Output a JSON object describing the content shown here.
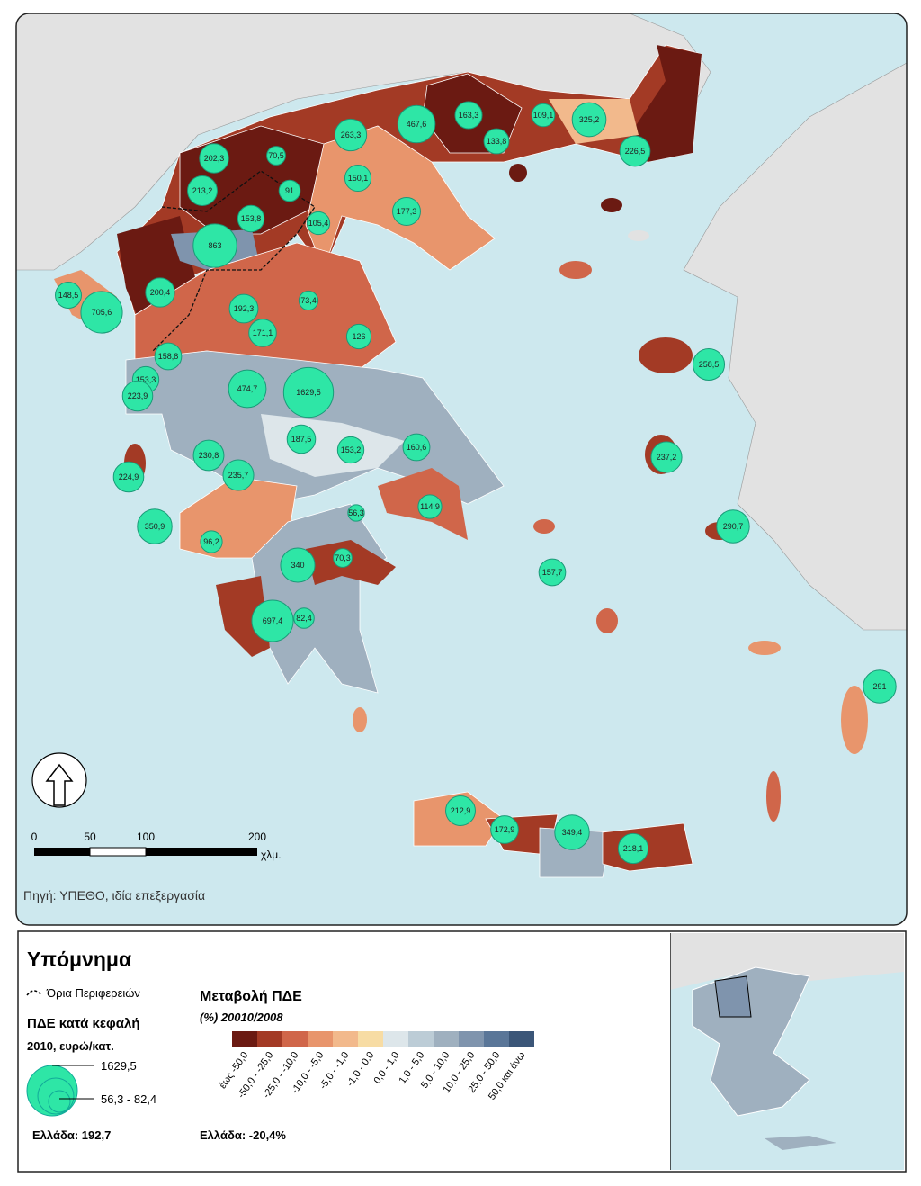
{
  "map": {
    "source": "Πηγή: ΥΠΕΘΟ, ιδία επεξεργασία",
    "scale_bar": {
      "labels": [
        "0",
        "50",
        "100",
        "200"
      ],
      "unit": "χλμ."
    },
    "circles": {
      "values": [
        202.3,
        70.5,
        213.2,
        91,
        153.8,
        863,
        105.4,
        263.3,
        467.6,
        163.3,
        133.8,
        109.1,
        325.2,
        226.5,
        150.1,
        177.3,
        148.5,
        705.6,
        200.4,
        192.3,
        73.4,
        171.1,
        126,
        158.8,
        153.3,
        223.9,
        474.7,
        1629.5,
        187.5,
        153.2,
        160.6,
        230.8,
        235.7,
        224.9,
        56.3,
        114.9,
        350.9,
        96.2,
        340,
        70.3,
        697.4,
        82.4,
        258.5,
        237.2,
        290.7,
        157.7,
        291,
        212.9,
        172.9,
        349.4,
        218.1
      ],
      "value_labels": [
        "202,3",
        "70,5",
        "213,2",
        "91",
        "153,8",
        "863",
        "105,4",
        "263,3",
        "467,6",
        "163,3",
        "133,8",
        "109,1",
        "325,2",
        "226,5",
        "150,1",
        "177,3",
        "148,5",
        "705,6",
        "200,4",
        "192,3",
        "73,4",
        "171,1",
        "126",
        "158,8",
        "153,3",
        "223,9",
        "474,7",
        "1629,5",
        "187,5",
        "153,2",
        "160,6",
        "230,8",
        "235,7",
        "224,9",
        "56,3",
        "114,9",
        "350,9",
        "96,2",
        "340",
        "70,3",
        "697,4",
        "82,4",
        "258,5",
        "237,2",
        "290,7",
        "157,7",
        "291",
        "212,9",
        "172,9",
        "349,4",
        "218,1"
      ],
      "color": "#2ee6a6"
    }
  },
  "legend": {
    "title": "Υπόμνημα",
    "boundaries": "Όρια Περιφερειών",
    "size_title": "ΠΔΕ κατά κεφαλή",
    "size_subtitle": "2010, ευρώ/κατ.",
    "size_max": "1629,5",
    "size_min": "56,3 - 82,4",
    "size_greece": "Ελλάδα: 192,7",
    "change_title": "Μεταβολή ΠΔΕ",
    "change_subtitle": "(%) 20010/2008",
    "change_greece": "Ελλάδα: -20,4%",
    "classes": [
      {
        "label": "έως -50,0",
        "color": "#6b1a12"
      },
      {
        "label": "-50,0 - -25,0",
        "color": "#a33a25"
      },
      {
        "label": "-25,0 - -10,0",
        "color": "#d0664a"
      },
      {
        "label": "-10,0 - -5,0",
        "color": "#e8956c"
      },
      {
        "label": "-5,0 - -1,0",
        "color": "#f2b98c"
      },
      {
        "label": "-1,0 - 0,0",
        "color": "#f7dca4"
      },
      {
        "label": "0,0 - 1,0",
        "color": "#dde6ea"
      },
      {
        "label": "1,0 - 5,0",
        "color": "#bcccd6"
      },
      {
        "label": "5,0 - 10,0",
        "color": "#9fb0bf"
      },
      {
        "label": "10,0 - 25,0",
        "color": "#7f94ad"
      },
      {
        "label": "25,0 - 50,0",
        "color": "#5a7698"
      },
      {
        "label": "50,0 και άνω",
        "color": "#3b5678"
      }
    ]
  }
}
